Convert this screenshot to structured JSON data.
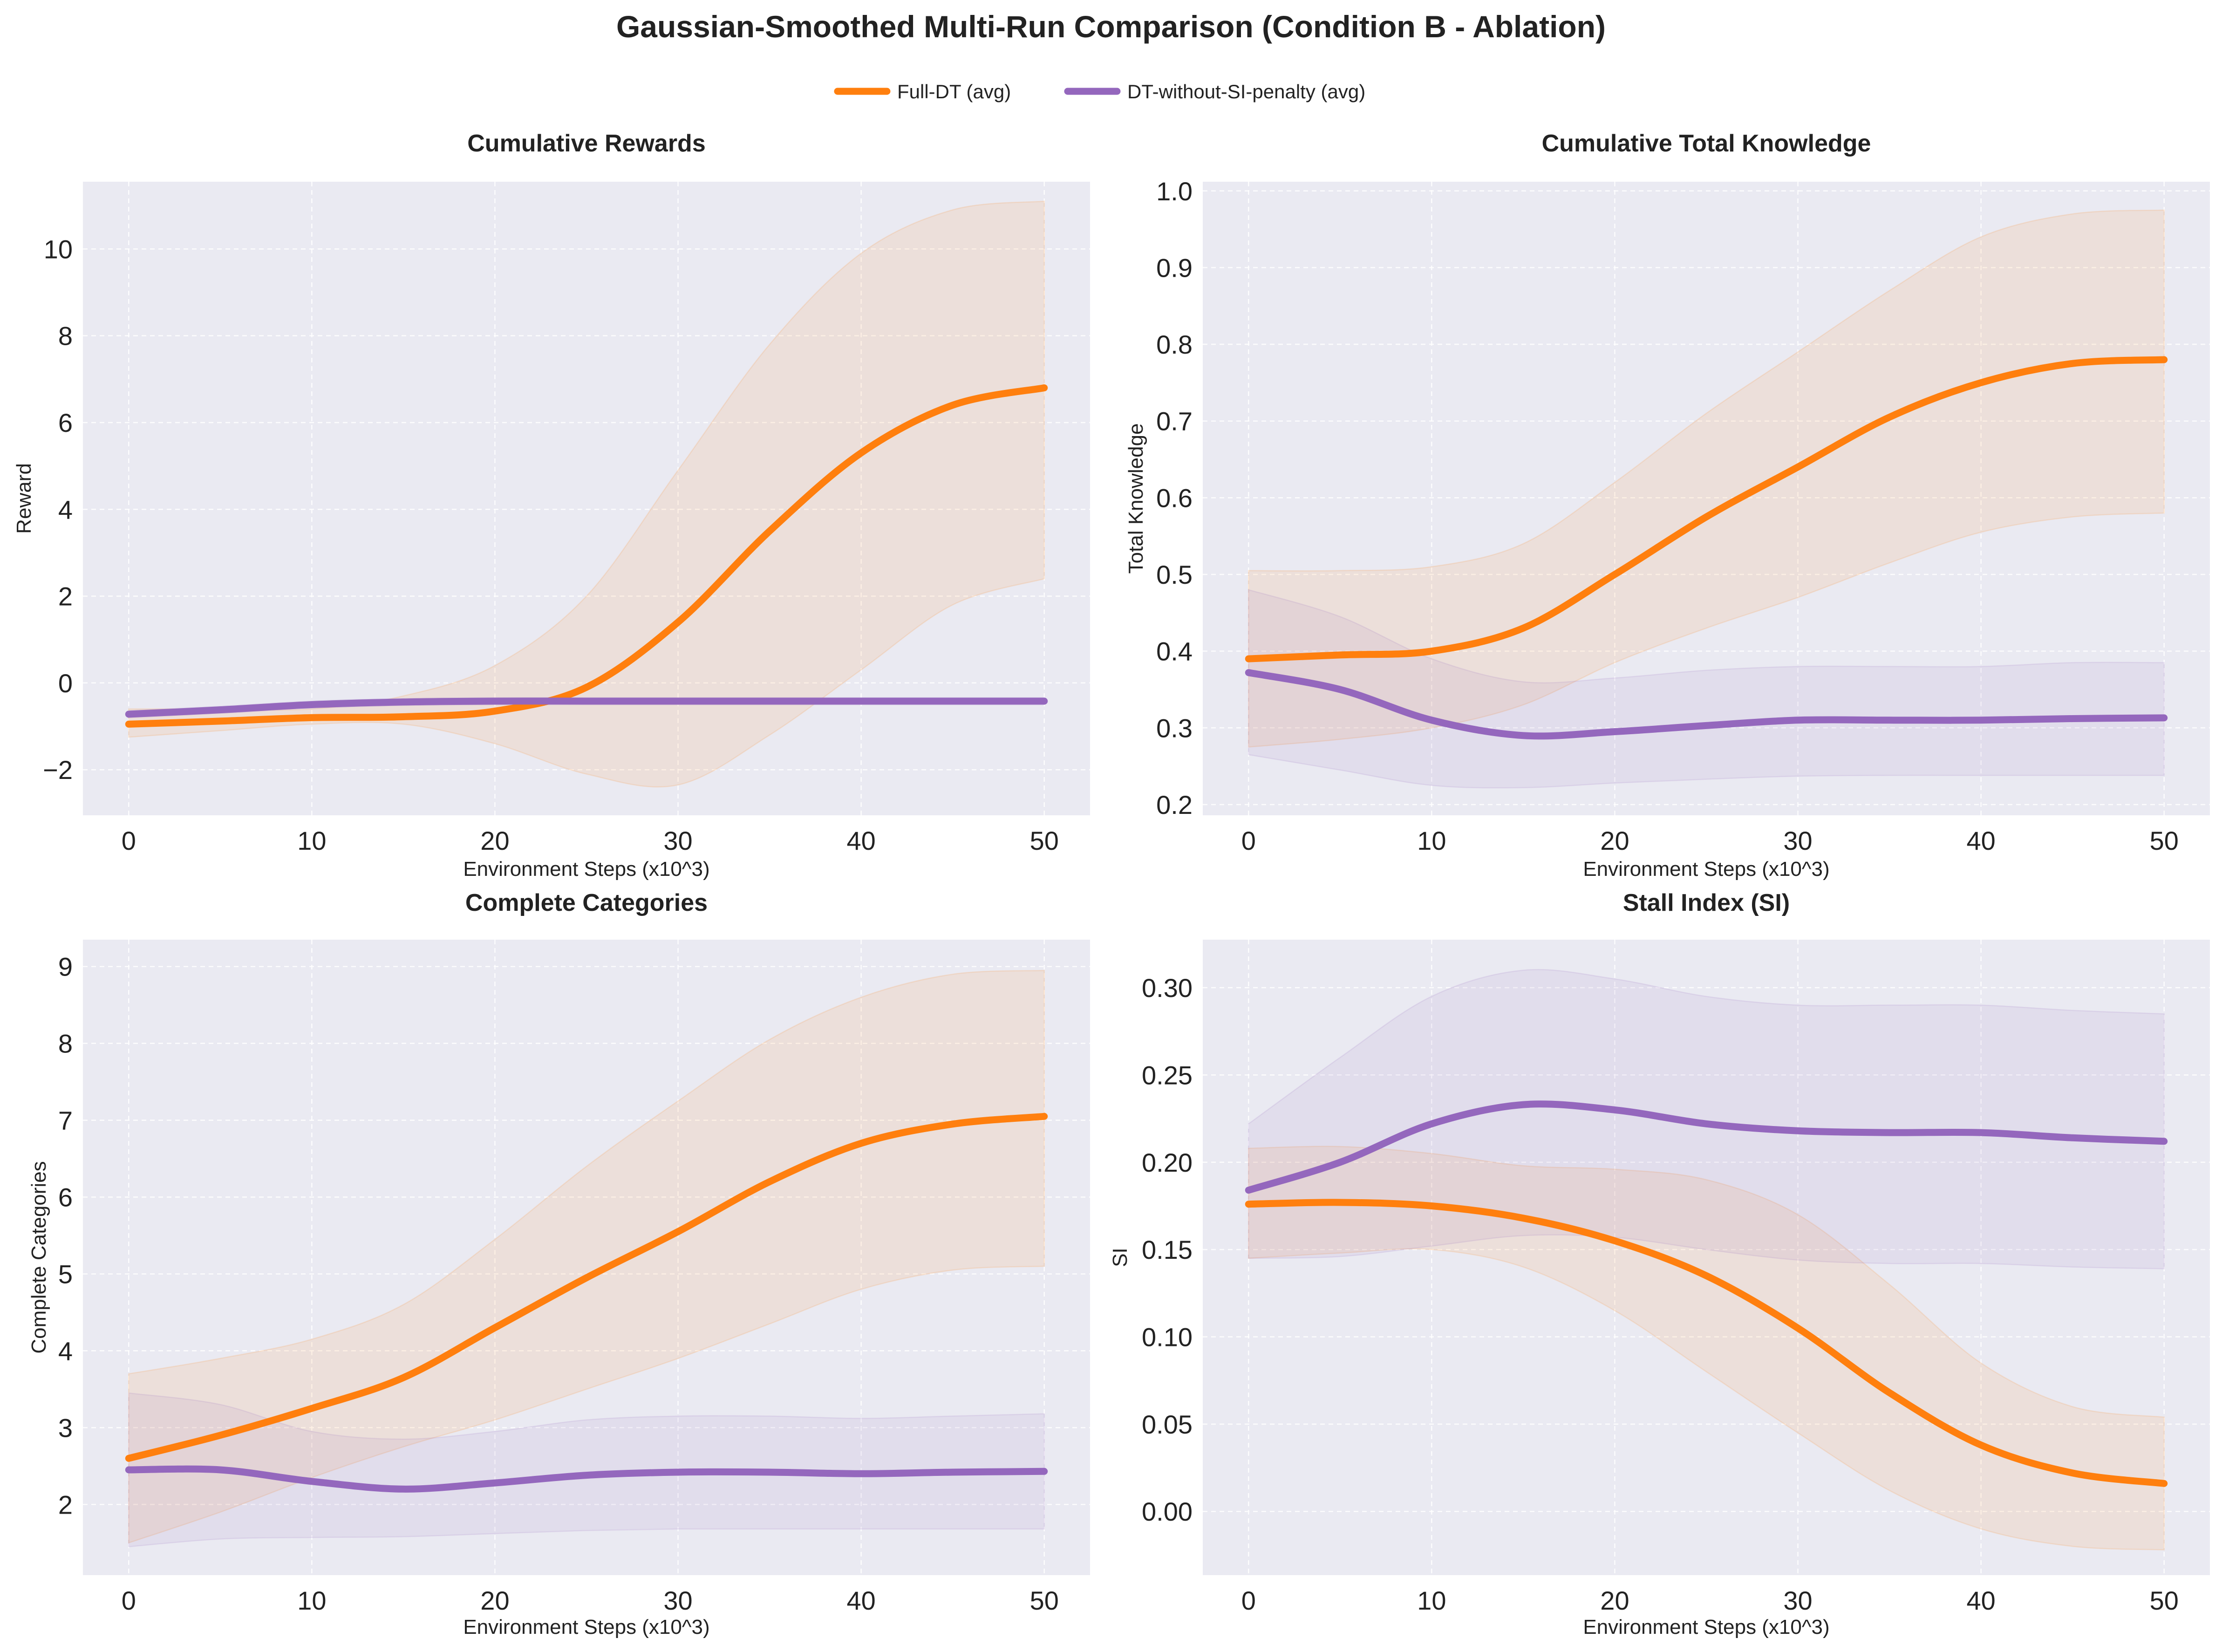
{
  "figure": {
    "title": "Gaussian-Smoothed Multi-Run Comparison (Condition B - Ablation)",
    "legend": [
      {
        "label": "Full-DT (avg)",
        "color": "#ff7f0e"
      },
      {
        "label": "DT-without-SI-penalty (avg)",
        "color": "#9467bd"
      }
    ]
  },
  "chart_data": [
    {
      "type": "line",
      "title": "Cumulative Rewards",
      "xlabel": "Environment Steps (x10^3)",
      "ylabel": "Reward",
      "xlim": [
        -2.5,
        52.5
      ],
      "ylim": [
        -3.05,
        11.55
      ],
      "xticks": [
        0,
        10,
        20,
        30,
        40,
        50
      ],
      "xtick_labels": [
        "0",
        "10",
        "20",
        "30",
        "40",
        "50"
      ],
      "yticks": [
        -2,
        0,
        2,
        4,
        6,
        8,
        10
      ],
      "ytick_labels": [
        "−2",
        "0",
        "2",
        "4",
        "6",
        "8",
        "10"
      ],
      "grid": true,
      "x": [
        0,
        5,
        10,
        15,
        20,
        25,
        30,
        35,
        40,
        45,
        50
      ],
      "series": [
        {
          "name": "Full-DT (avg)",
          "color": "#ff7f0e",
          "values": [
            -0.95,
            -0.88,
            -0.8,
            -0.78,
            -0.65,
            -0.1,
            1.4,
            3.5,
            5.3,
            6.4,
            6.8
          ],
          "lower": [
            -1.25,
            -1.1,
            -0.95,
            -0.95,
            -1.4,
            -2.1,
            -2.35,
            -1.2,
            0.3,
            1.8,
            2.4
          ],
          "upper": [
            -0.6,
            -0.6,
            -0.6,
            -0.3,
            0.4,
            2.0,
            4.9,
            7.8,
            9.9,
            10.9,
            11.1
          ]
        },
        {
          "name": "DT-without-SI-penalty (avg)",
          "color": "#9467bd",
          "values": [
            -0.72,
            -0.62,
            -0.5,
            -0.44,
            -0.42,
            -0.42,
            -0.42,
            -0.42,
            -0.42,
            -0.42,
            -0.42
          ],
          "lower": [
            -0.8,
            -0.7,
            -0.58,
            -0.52,
            -0.5,
            -0.5,
            -0.5,
            -0.5,
            -0.5,
            -0.5,
            -0.5
          ],
          "upper": [
            -0.64,
            -0.54,
            -0.42,
            -0.36,
            -0.34,
            -0.34,
            -0.34,
            -0.34,
            -0.34,
            -0.34,
            -0.34
          ]
        }
      ]
    },
    {
      "type": "line",
      "title": "Cumulative Total Knowledge",
      "xlabel": "Environment Steps (x10^3)",
      "ylabel": "Total Knowledge",
      "xlim": [
        -2.5,
        52.5
      ],
      "ylim": [
        0.186,
        1.012
      ],
      "xticks": [
        0,
        10,
        20,
        30,
        40,
        50
      ],
      "xtick_labels": [
        "0",
        "10",
        "20",
        "30",
        "40",
        "50"
      ],
      "yticks": [
        0.2,
        0.3,
        0.4,
        0.5,
        0.6,
        0.7,
        0.8,
        0.9,
        1.0
      ],
      "ytick_labels": [
        "0.2",
        "0.3",
        "0.4",
        "0.5",
        "0.6",
        "0.7",
        "0.8",
        "0.9",
        "1.0"
      ],
      "grid": true,
      "x": [
        0,
        5,
        10,
        15,
        20,
        25,
        30,
        35,
        40,
        45,
        50
      ],
      "series": [
        {
          "name": "Full-DT (avg)",
          "color": "#ff7f0e",
          "values": [
            0.39,
            0.395,
            0.4,
            0.43,
            0.5,
            0.575,
            0.64,
            0.705,
            0.75,
            0.775,
            0.78
          ],
          "lower": [
            0.275,
            0.285,
            0.3,
            0.33,
            0.385,
            0.43,
            0.47,
            0.515,
            0.555,
            0.575,
            0.58
          ],
          "upper": [
            0.505,
            0.505,
            0.51,
            0.54,
            0.62,
            0.71,
            0.79,
            0.87,
            0.94,
            0.97,
            0.975
          ]
        },
        {
          "name": "DT-without-SI-penalty (avg)",
          "color": "#9467bd",
          "values": [
            0.372,
            0.35,
            0.31,
            0.29,
            0.295,
            0.303,
            0.31,
            0.31,
            0.31,
            0.312,
            0.313
          ],
          "lower": [
            0.265,
            0.245,
            0.225,
            0.222,
            0.228,
            0.233,
            0.237,
            0.238,
            0.238,
            0.238,
            0.238
          ],
          "upper": [
            0.48,
            0.445,
            0.39,
            0.36,
            0.365,
            0.375,
            0.38,
            0.38,
            0.38,
            0.385,
            0.385
          ]
        }
      ]
    },
    {
      "type": "line",
      "title": "Complete Categories",
      "xlabel": "Environment Steps (x10^3)",
      "ylabel": "Complete Categories",
      "xlim": [
        -2.5,
        52.5
      ],
      "ylim": [
        1.08,
        9.35
      ],
      "xticks": [
        0,
        10,
        20,
        30,
        40,
        50
      ],
      "xtick_labels": [
        "0",
        "10",
        "20",
        "30",
        "40",
        "50"
      ],
      "yticks": [
        2,
        3,
        4,
        5,
        6,
        7,
        8,
        9
      ],
      "ytick_labels": [
        "2",
        "3",
        "4",
        "5",
        "6",
        "7",
        "8",
        "9"
      ],
      "grid": true,
      "x": [
        0,
        5,
        10,
        15,
        20,
        25,
        30,
        35,
        40,
        45,
        50
      ],
      "series": [
        {
          "name": "Full-DT (avg)",
          "color": "#ff7f0e",
          "values": [
            2.6,
            2.9,
            3.25,
            3.65,
            4.3,
            4.95,
            5.55,
            6.2,
            6.7,
            6.95,
            7.05
          ],
          "lower": [
            1.5,
            1.9,
            2.35,
            2.75,
            3.1,
            3.5,
            3.9,
            4.35,
            4.8,
            5.05,
            5.1
          ],
          "upper": [
            3.7,
            3.9,
            4.15,
            4.6,
            5.45,
            6.4,
            7.25,
            8.05,
            8.6,
            8.9,
            8.95
          ]
        },
        {
          "name": "DT-without-SI-penalty (avg)",
          "color": "#9467bd",
          "values": [
            2.45,
            2.45,
            2.3,
            2.2,
            2.28,
            2.38,
            2.42,
            2.42,
            2.4,
            2.42,
            2.43
          ],
          "lower": [
            1.45,
            1.55,
            1.57,
            1.58,
            1.62,
            1.66,
            1.68,
            1.68,
            1.68,
            1.68,
            1.68
          ],
          "upper": [
            3.45,
            3.3,
            2.95,
            2.85,
            2.95,
            3.1,
            3.15,
            3.15,
            3.12,
            3.15,
            3.18
          ]
        }
      ]
    },
    {
      "type": "line",
      "title": "Stall Index (SI)",
      "xlabel": "Environment Steps (x10^3)",
      "ylabel": "SI",
      "xlim": [
        -2.5,
        52.5
      ],
      "ylim": [
        -0.0365,
        0.3275
      ],
      "xticks": [
        0,
        10,
        20,
        30,
        40,
        50
      ],
      "xtick_labels": [
        "0",
        "10",
        "20",
        "30",
        "40",
        "50"
      ],
      "yticks": [
        0.0,
        0.05,
        0.1,
        0.15,
        0.2,
        0.25,
        0.3
      ],
      "ytick_labels": [
        "0.00",
        "0.05",
        "0.10",
        "0.15",
        "0.20",
        "0.25",
        "0.30"
      ],
      "grid": true,
      "x": [
        0,
        5,
        10,
        15,
        20,
        25,
        30,
        35,
        40,
        45,
        50
      ],
      "series": [
        {
          "name": "Full-DT (avg)",
          "color": "#ff7f0e",
          "values": [
            0.176,
            0.177,
            0.175,
            0.168,
            0.155,
            0.135,
            0.105,
            0.068,
            0.038,
            0.022,
            0.016
          ],
          "lower": [
            0.145,
            0.148,
            0.15,
            0.14,
            0.115,
            0.08,
            0.045,
            0.012,
            -0.01,
            -0.02,
            -0.022
          ],
          "upper": [
            0.208,
            0.209,
            0.205,
            0.198,
            0.196,
            0.19,
            0.17,
            0.13,
            0.085,
            0.06,
            0.054
          ]
        },
        {
          "name": "DT-without-SI-penalty (avg)",
          "color": "#9467bd",
          "values": [
            0.184,
            0.2,
            0.222,
            0.233,
            0.23,
            0.222,
            0.218,
            0.217,
            0.217,
            0.214,
            0.212
          ],
          "lower": [
            0.145,
            0.146,
            0.152,
            0.158,
            0.157,
            0.15,
            0.144,
            0.142,
            0.142,
            0.14,
            0.139
          ],
          "upper": [
            0.222,
            0.26,
            0.295,
            0.31,
            0.305,
            0.295,
            0.29,
            0.29,
            0.29,
            0.287,
            0.285
          ]
        }
      ]
    }
  ]
}
